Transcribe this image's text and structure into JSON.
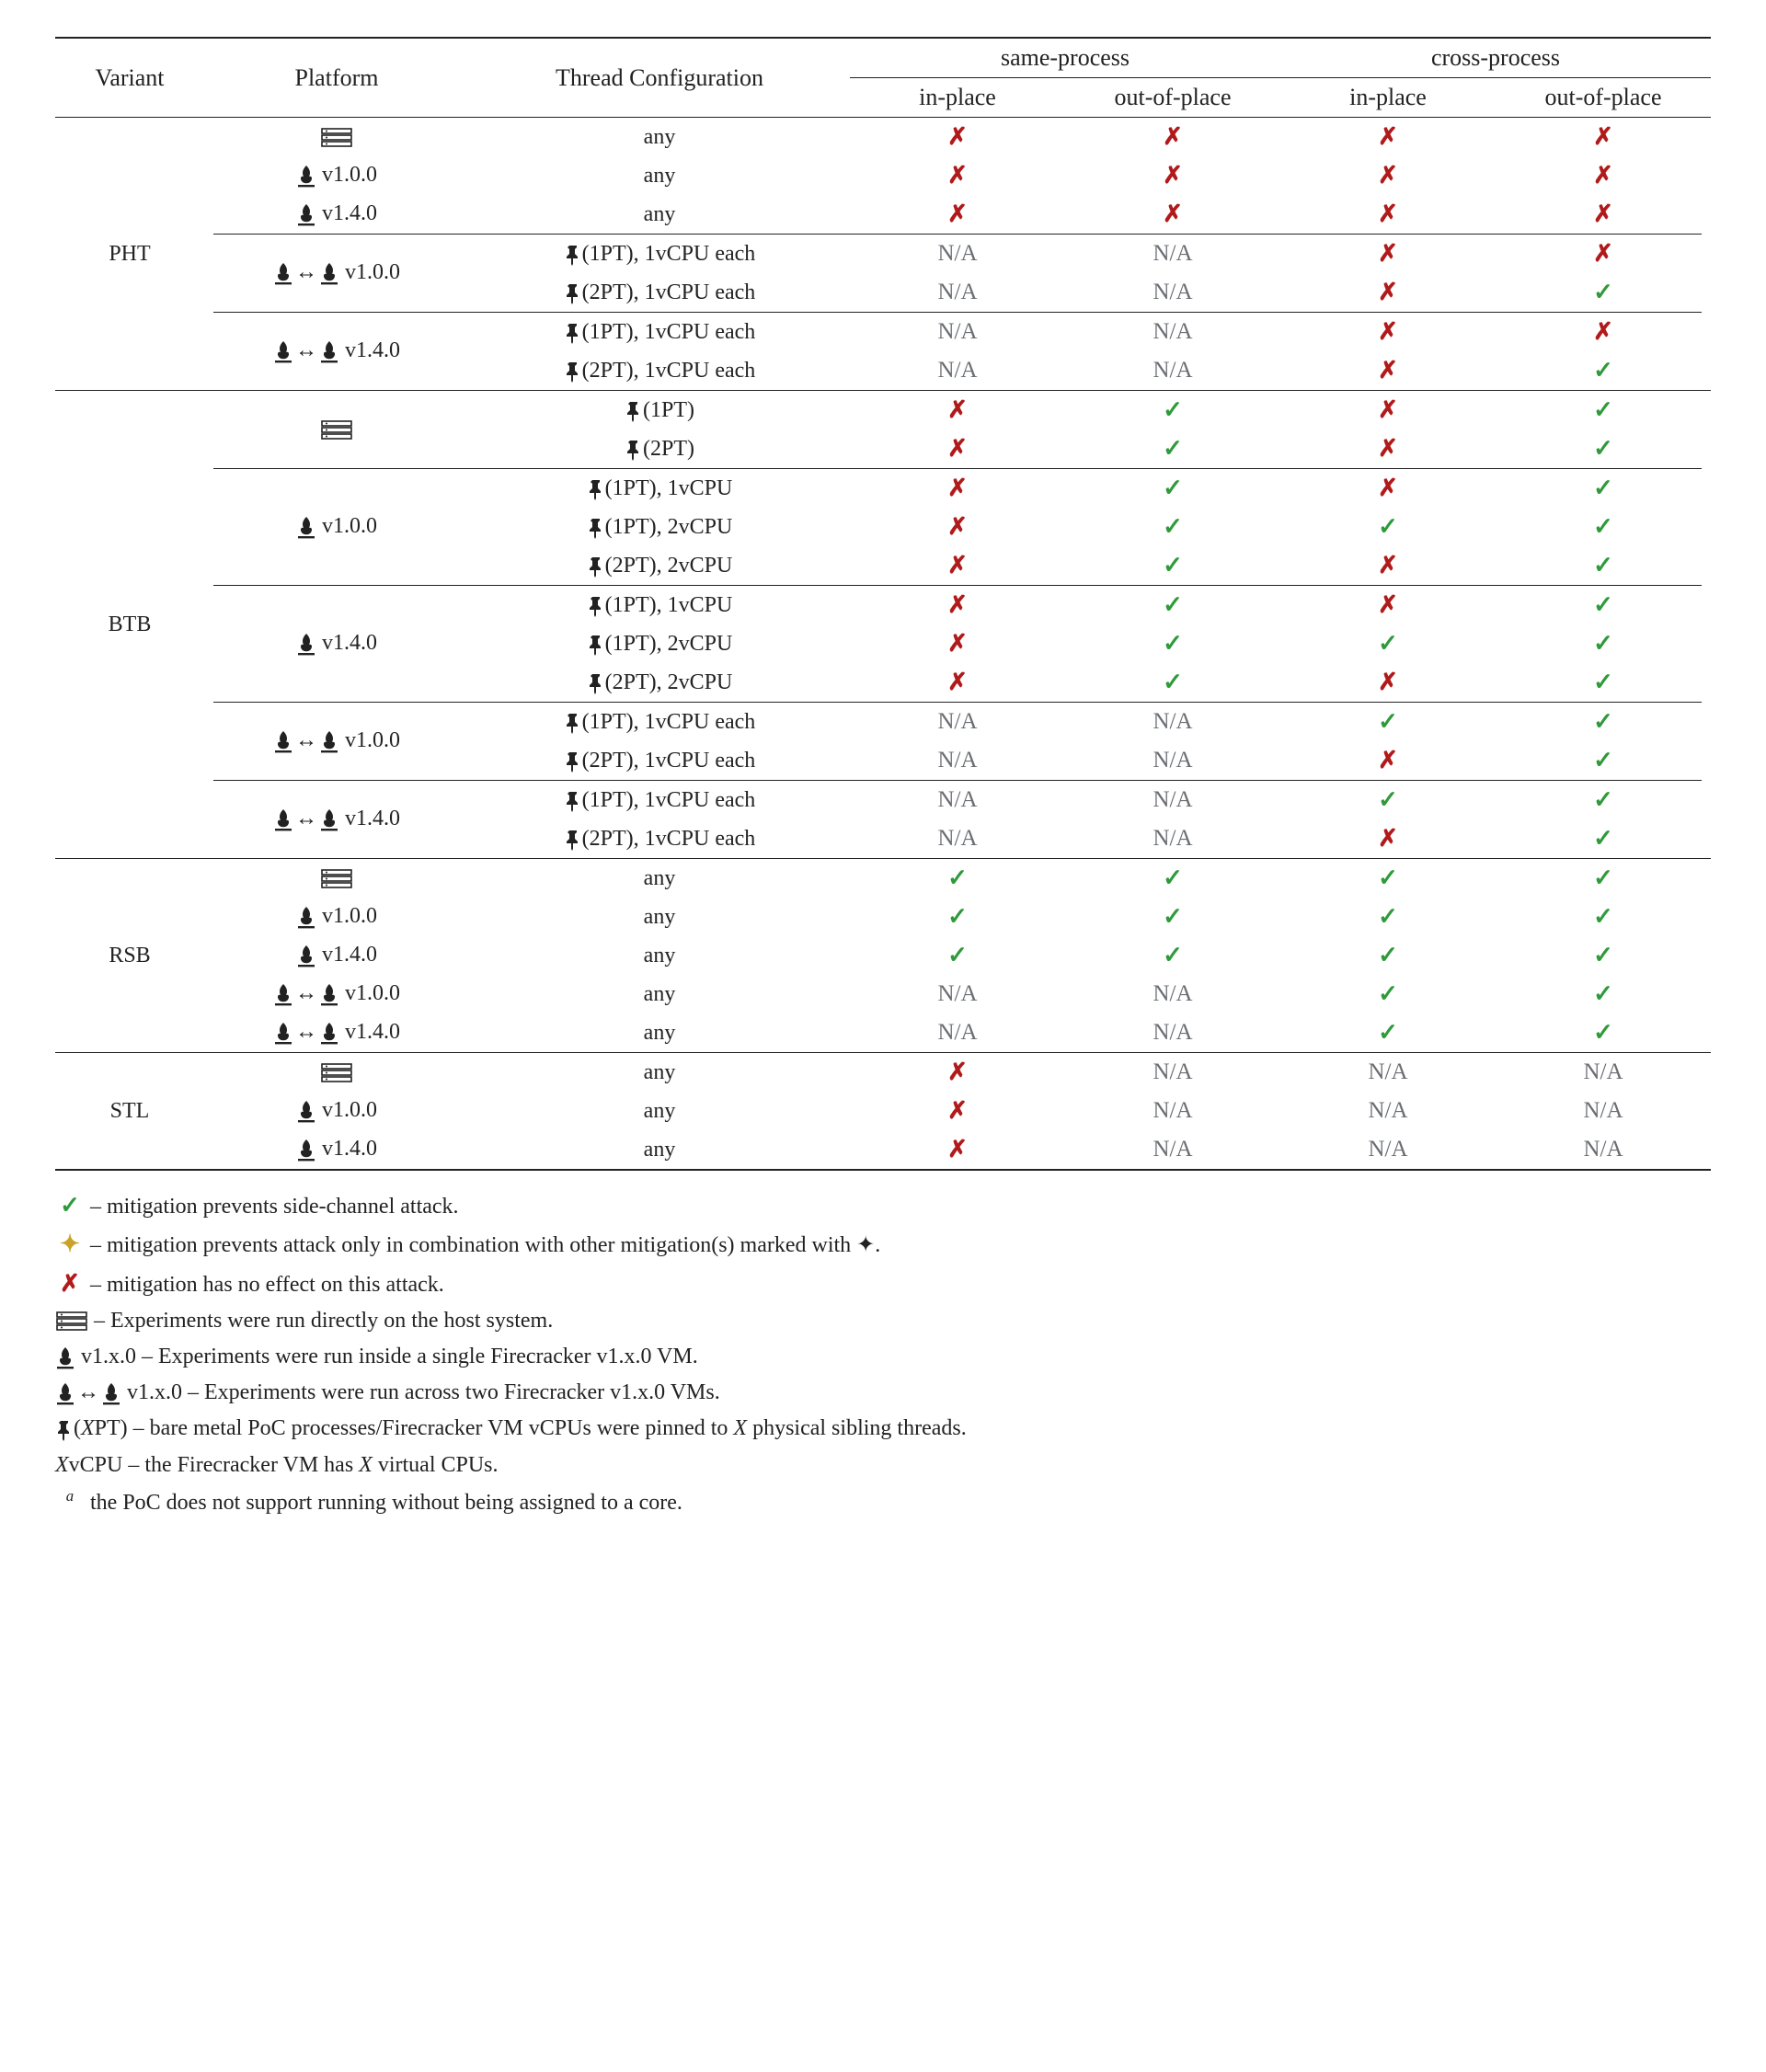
{
  "colors": {
    "check": "#2e9a3a",
    "cross": "#b11a1a",
    "plus": "#c9a227",
    "na": "#6a6d72",
    "rule": "#222222",
    "text": "#222222",
    "bg": "#ffffff"
  },
  "glyphs": {
    "check": "✓",
    "cross": "✗",
    "plus": "✦",
    "na": "N/A",
    "arrow": "↔"
  },
  "header": {
    "variant": "Variant",
    "platform": "Platform",
    "config": "Thread Configuration",
    "same": "same-process",
    "cross": "cross-process",
    "in": "in-place",
    "out": "out-of-place"
  },
  "platforms": {
    "host": {
      "type": "host",
      "label": ""
    },
    "fc100": {
      "type": "fc",
      "version": "v1.0.0"
    },
    "fc140": {
      "type": "fc",
      "version": "v1.4.0"
    },
    "fcx100": {
      "type": "fcx",
      "version": "v1.0.0"
    },
    "fcx140": {
      "type": "fcx",
      "version": "v1.4.0"
    }
  },
  "groups": [
    {
      "variant": "PHT",
      "subgroups": [
        {
          "rows": [
            {
              "platform": "host",
              "config": "any",
              "vals": [
                "cross",
                "cross",
                "cross",
                "cross"
              ]
            },
            {
              "platform": "fc100",
              "config": "any",
              "vals": [
                "cross",
                "cross",
                "cross",
                "cross"
              ]
            },
            {
              "platform": "fc140",
              "config": "any",
              "vals": [
                "cross",
                "cross",
                "cross",
                "cross"
              ]
            }
          ]
        },
        {
          "rows": [
            {
              "platform": "fcx100",
              "config": "pin:1PT, 1vCPU each",
              "vals": [
                "na",
                "na",
                "cross",
                "cross"
              ]
            },
            {
              "platform": "",
              "config": "pin:2PT, 1vCPU each",
              "vals": [
                "na",
                "na",
                "cross",
                "check"
              ]
            }
          ]
        },
        {
          "rows": [
            {
              "platform": "fcx140",
              "config": "pin:1PT, 1vCPU each",
              "vals": [
                "na",
                "na",
                "cross",
                "cross"
              ]
            },
            {
              "platform": "",
              "config": "pin:2PT, 1vCPU each",
              "vals": [
                "na",
                "na",
                "cross",
                "check"
              ]
            }
          ]
        }
      ]
    },
    {
      "variant": "BTB",
      "subgroups": [
        {
          "rows": [
            {
              "platform": "host",
              "config": "pin:1PT",
              "vals": [
                "cross",
                "check",
                "cross",
                "check"
              ]
            },
            {
              "platform": "",
              "config": "pin:2PT",
              "vals": [
                "cross",
                "check",
                "cross",
                "check"
              ]
            }
          ]
        },
        {
          "rows": [
            {
              "platform": "fc100",
              "config": "pin:1PT, 1vCPU",
              "vals": [
                "cross",
                "check",
                "cross",
                "check"
              ]
            },
            {
              "platform": "",
              "config": "pin:1PT, 2vCPU",
              "vals": [
                "cross",
                "check",
                "check",
                "check"
              ]
            },
            {
              "platform": "",
              "config": "pin:2PT, 2vCPU",
              "vals": [
                "cross",
                "check",
                "cross",
                "check"
              ]
            }
          ]
        },
        {
          "rows": [
            {
              "platform": "fc140",
              "config": "pin:1PT, 1vCPU",
              "vals": [
                "cross",
                "check",
                "cross",
                "check"
              ]
            },
            {
              "platform": "",
              "config": "pin:1PT, 2vCPU",
              "vals": [
                "cross",
                "check",
                "check",
                "check"
              ]
            },
            {
              "platform": "",
              "config": "pin:2PT, 2vCPU",
              "vals": [
                "cross",
                "check",
                "cross",
                "check"
              ]
            }
          ]
        },
        {
          "rows": [
            {
              "platform": "fcx100",
              "config": "pin:1PT, 1vCPU each",
              "vals": [
                "na",
                "na",
                "check",
                "check"
              ]
            },
            {
              "platform": "",
              "config": "pin:2PT, 1vCPU each",
              "vals": [
                "na",
                "na",
                "cross",
                "check"
              ]
            }
          ]
        },
        {
          "rows": [
            {
              "platform": "fcx140",
              "config": "pin:1PT, 1vCPU each",
              "vals": [
                "na",
                "na",
                "check",
                "check"
              ]
            },
            {
              "platform": "",
              "config": "pin:2PT, 1vCPU each",
              "vals": [
                "na",
                "na",
                "cross",
                "check"
              ]
            }
          ]
        }
      ]
    },
    {
      "variant": "RSB",
      "subgroups": [
        {
          "rows": [
            {
              "platform": "host",
              "config": "any",
              "vals": [
                "check",
                "check",
                "check",
                "check"
              ]
            },
            {
              "platform": "fc100",
              "config": "any",
              "vals": [
                "check",
                "check",
                "check",
                "check"
              ]
            },
            {
              "platform": "fc140",
              "config": "any",
              "vals": [
                "check",
                "check",
                "check",
                "check"
              ]
            },
            {
              "platform": "fcx100",
              "config": "any",
              "vals": [
                "na",
                "na",
                "check",
                "check"
              ]
            },
            {
              "platform": "fcx140",
              "config": "any",
              "vals": [
                "na",
                "na",
                "check",
                "check"
              ]
            }
          ]
        }
      ]
    },
    {
      "variant": "STL",
      "subgroups": [
        {
          "rows": [
            {
              "platform": "host",
              "config": "any",
              "vals": [
                "cross",
                "na",
                "na",
                "na"
              ]
            },
            {
              "platform": "fc100",
              "config": "any",
              "vals": [
                "cross",
                "na",
                "na",
                "na"
              ]
            },
            {
              "platform": "fc140",
              "config": "any",
              "vals": [
                "cross",
                "na",
                "na",
                "na"
              ]
            }
          ]
        }
      ]
    }
  ],
  "legend": [
    {
      "sym": "check",
      "text": "– mitigation prevents side-channel attack."
    },
    {
      "sym": "plus",
      "text": "– mitigation prevents attack only in combination with other mitigation(s) marked with ✦."
    },
    {
      "sym": "cross",
      "text": "– mitigation has no effect on this attack."
    },
    {
      "sym": "host",
      "text": "– Experiments were run directly on the host system."
    },
    {
      "sym": "fc",
      "suffix": " v1.x.0",
      "text": "– Experiments were run inside a single Firecracker v1.x.0 VM."
    },
    {
      "sym": "fcx",
      "suffix": " v1.x.0",
      "text": "– Experiments were run across two Firecracker v1.x.0 VMs."
    },
    {
      "sym": "pin",
      "suffix": "(XPT)",
      "text": "– bare metal PoC processes/Firecracker VM vCPUs were pinned to X physical sibling threads.",
      "italicX": true
    },
    {
      "sym": "text",
      "label": "XvCPU",
      "text": "– the Firecracker VM has X virtual CPUs.",
      "italicX": true
    },
    {
      "sym": "text",
      "label": "a",
      "sup": true,
      "text": " the PoC does not support running without being assigned to a core."
    }
  ]
}
